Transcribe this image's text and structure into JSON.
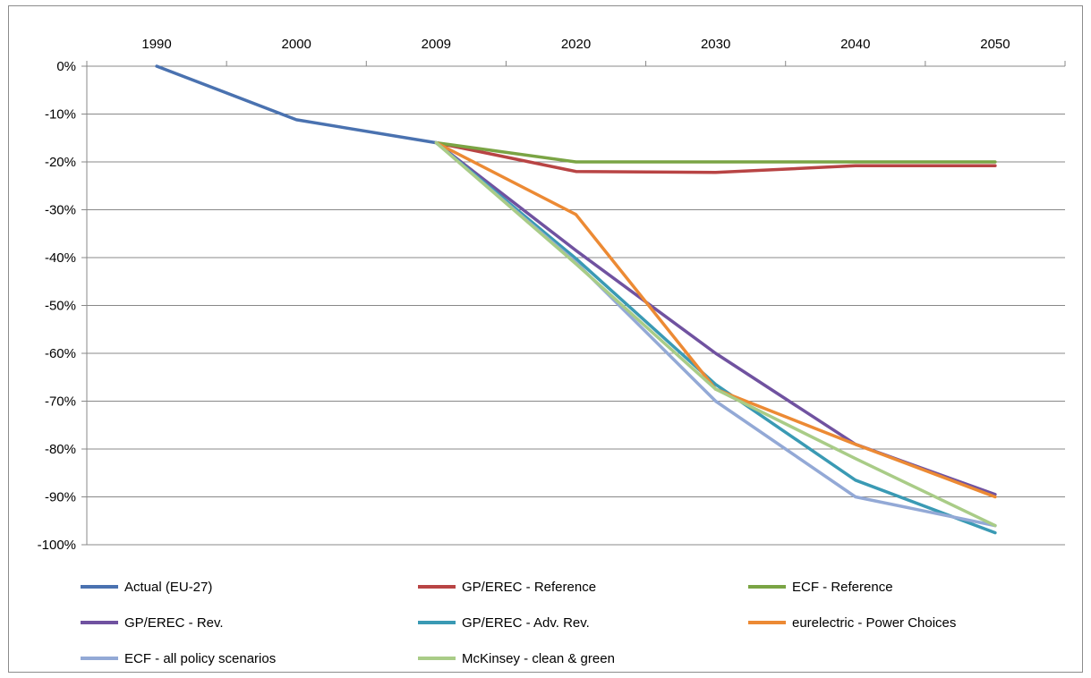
{
  "chart_data": {
    "type": "line",
    "title": "",
    "xlabel": "",
    "ylabel": "",
    "x": [
      "1990",
      "2000",
      "2009",
      "2020",
      "2030",
      "2040",
      "2050"
    ],
    "x_axis_position": "top",
    "ylim": [
      -100,
      0
    ],
    "y_ticks": [
      "0%",
      "-10%",
      "-20%",
      "-30%",
      "-40%",
      "-50%",
      "-60%",
      "-70%",
      "-80%",
      "-90%",
      "-100%"
    ],
    "grid": true,
    "legend_position": "bottom",
    "series": [
      {
        "name": "Actual (EU-27)",
        "color": "#4a72b0",
        "values": [
          0,
          -11.2,
          -16,
          null,
          null,
          null,
          null
        ]
      },
      {
        "name": "GP/EREC - Reference",
        "color": "#b84444",
        "values": [
          null,
          null,
          -16,
          -22,
          -22.2,
          -20.8,
          -20.8
        ]
      },
      {
        "name": "ECF - Reference",
        "color": "#7aa444",
        "values": [
          null,
          null,
          -16,
          -20,
          -20,
          -20,
          -20
        ]
      },
      {
        "name": "GP/EREC - Rev.",
        "color": "#7052a0",
        "values": [
          null,
          null,
          -16,
          -38.5,
          -60,
          -79,
          -89.5
        ]
      },
      {
        "name": "GP/EREC - Adv. Rev.",
        "color": "#3a9ab4",
        "values": [
          null,
          null,
          -16,
          -40.2,
          -66.5,
          -86.5,
          -97.5
        ]
      },
      {
        "name": "eurelectric - Power Choices",
        "color": "#ec8a34",
        "values": [
          null,
          null,
          -16,
          -31,
          -67.5,
          -79,
          -90
        ]
      },
      {
        "name": "ECF - all policy scenarios",
        "color": "#93a9d6",
        "values": [
          null,
          null,
          -16,
          -41,
          -70,
          -90,
          -96
        ]
      },
      {
        "name": "McKinsey - clean & green",
        "color": "#a9cc87",
        "values": [
          null,
          null,
          -16,
          -41.3,
          -67.5,
          -82,
          -96
        ]
      }
    ]
  }
}
